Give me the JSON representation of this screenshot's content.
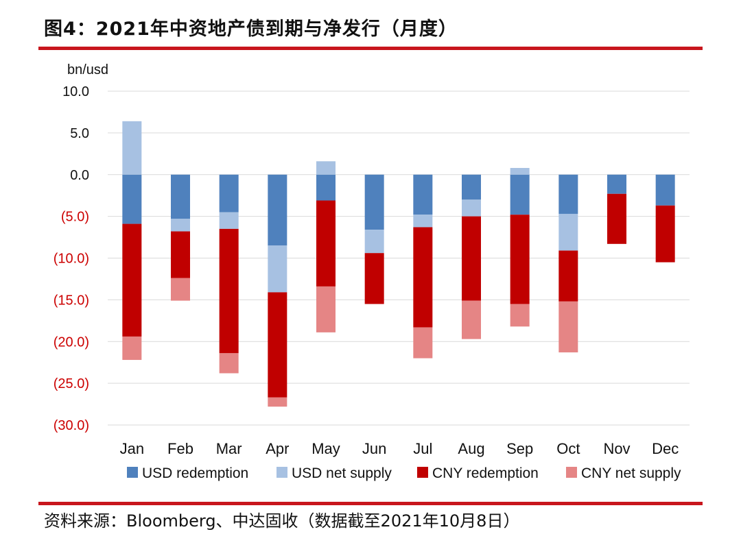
{
  "header": {
    "title": "图4：2021年中资地产债到期与净发行（月度）"
  },
  "footer": {
    "source": "资料来源：Bloomberg、中达固收（数据截至2021年10月8日）"
  },
  "colors": {
    "rule": "#c8161d",
    "usd_redemption": "#4f81bd",
    "usd_net_supply": "#a7c1e2",
    "cny_redemption": "#c00000",
    "cny_net_supply": "#e58585",
    "neg_label": "#cc0000"
  },
  "chart_data": {
    "type": "bar",
    "stacked": true,
    "unit_label": "bn/usd",
    "categories": [
      "Jan",
      "Feb",
      "Mar",
      "Apr",
      "May",
      "Jun",
      "Jul",
      "Aug",
      "Sep",
      "Oct",
      "Nov",
      "Dec"
    ],
    "ylim": [
      -30,
      10
    ],
    "yticks": [
      10,
      5,
      0,
      -5,
      -10,
      -15,
      -20,
      -25,
      -30
    ],
    "ytick_labels": [
      "10.0",
      "5.0",
      "0.0",
      "(5.0)",
      "(10.0)",
      "(15.0)",
      "(20.0)",
      "(25.0)",
      "(30.0)"
    ],
    "grid": true,
    "legend_position": "bottom",
    "series": [
      {
        "name": "USD redemption",
        "values": [
          -5.9,
          -5.3,
          -4.5,
          -8.5,
          -3.1,
          -6.6,
          -4.8,
          -3.0,
          -4.8,
          -4.7,
          -2.3,
          -3.7
        ]
      },
      {
        "name": "USD net supply",
        "values": [
          6.4,
          -1.5,
          -2.0,
          -5.6,
          1.6,
          -2.8,
          -1.5,
          -2.0,
          0.8,
          -4.4,
          0,
          0
        ]
      },
      {
        "name": "CNY redemption",
        "values": [
          -13.5,
          -5.6,
          -14.9,
          -12.6,
          -10.3,
          -6.1,
          -12.0,
          -10.1,
          -10.7,
          -6.1,
          -6.0,
          -6.8
        ]
      },
      {
        "name": "CNY net supply",
        "values": [
          -2.8,
          -2.7,
          -2.4,
          -1.1,
          -5.5,
          0,
          -3.7,
          -4.6,
          -2.7,
          -6.1,
          0,
          0
        ]
      }
    ]
  }
}
